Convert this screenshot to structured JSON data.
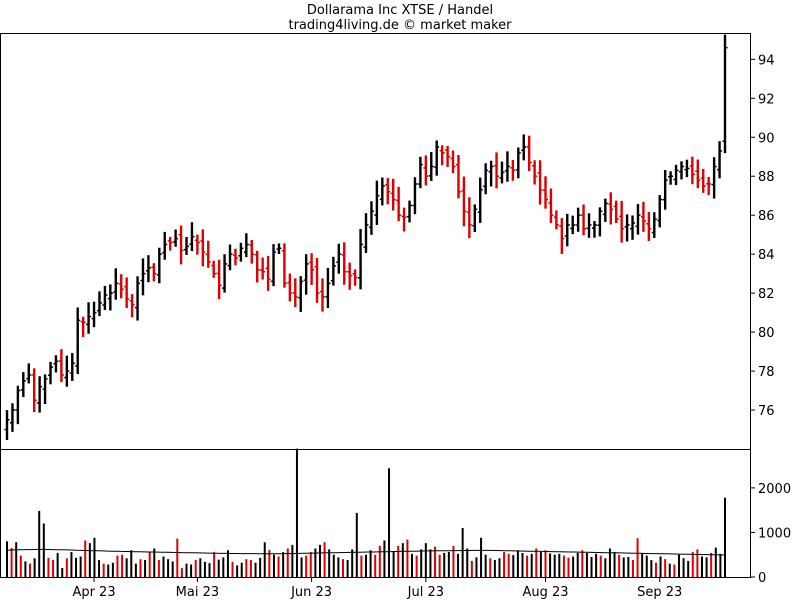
{
  "title": "Dollarama Inc XTSE / Handel",
  "subtitle": "trading4living.de © market maker",
  "colors": {
    "up": "#000000",
    "down": "#dd0000",
    "axis": "#000000",
    "background": "#ffffff"
  },
  "chart_data": [
    {
      "type": "ohlc",
      "ylim": [
        74,
        95.3
      ],
      "yticks": [
        76,
        78,
        80,
        82,
        84,
        86,
        88,
        90,
        92,
        94
      ],
      "ytick_labels": [
        "76",
        "78",
        "80",
        "82",
        "84",
        "86",
        "88",
        "90",
        "92",
        "94"
      ],
      "xticks": [
        {
          "label": "Apr 23",
          "index": 16
        },
        {
          "label": "Mai 23",
          "index": 35
        },
        {
          "label": "Jun 23",
          "index": 56
        },
        {
          "label": "Jul 23",
          "index": 77
        },
        {
          "label": "Aug 23",
          "index": 99
        },
        {
          "label": "Sep 23",
          "index": 120
        }
      ],
      "grid": false,
      "close": [
        75.5,
        76.0,
        77.0,
        77.5,
        77.8,
        76.5,
        77.2,
        77.6,
        78.2,
        78.5,
        77.8,
        78.0,
        78.4,
        80.6,
        80.5,
        80.8,
        81.0,
        81.5,
        81.9,
        82.0,
        82.5,
        82.2,
        81.7,
        81.4,
        82.5,
        83.0,
        83.3,
        83.0,
        84.0,
        84.5,
        84.6,
        84.8,
        84.2,
        84.4,
        84.9,
        84.6,
        84.1,
        83.6,
        83.0,
        82.4,
        83.5,
        84.0,
        83.8,
        84.3,
        84.5,
        84.0,
        83.2,
        83.1,
        82.7,
        84.1,
        84.3,
        82.5,
        82.0,
        81.8,
        82.6,
        83.5,
        83.2,
        82.0,
        81.8,
        82.5,
        83.4,
        84.0,
        83.1,
        82.9,
        82.8,
        84.5,
        85.5,
        86.2,
        87.0,
        87.5,
        87.2,
        86.8,
        86.0,
        85.9,
        86.5,
        87.6,
        88.6,
        88.0,
        88.5,
        89.5,
        89.2,
        89.0,
        88.5,
        87.2,
        86.2,
        85.5,
        86.3,
        87.3,
        88.3,
        88.5,
        88.0,
        88.2,
        88.5,
        88.3,
        89.2,
        89.5,
        88.7,
        88.0,
        87.3,
        86.8,
        86.0,
        85.5,
        84.8,
        85.5,
        85.5,
        86.0,
        85.3,
        85.5,
        85.5,
        86.2,
        86.6,
        86.3,
        85.8,
        85.3,
        85.5,
        85.6,
        86.0,
        85.7,
        85.3,
        85.8,
        86.8,
        87.8,
        88.0,
        88.3,
        88.5,
        88.4,
        88.1,
        87.8,
        87.5,
        87.6,
        88.5,
        89.3,
        94.6
      ]
    },
    {
      "type": "bar",
      "ylim": [
        0,
        2850
      ],
      "yticks": [
        0,
        1000,
        2000
      ],
      "ytick_labels": [
        "0",
        "1000",
        "2000"
      ],
      "values": [
        800,
        650,
        780,
        480,
        350,
        300,
        420,
        1480,
        1200,
        430,
        380,
        540,
        200,
        420,
        560,
        430,
        460,
        820,
        760,
        880,
        380,
        300,
        280,
        320,
        480,
        500,
        420,
        600,
        300,
        400,
        380,
        560,
        640,
        380,
        460,
        400,
        350,
        860,
        200,
        300,
        280,
        380,
        420,
        340,
        310,
        560,
        390,
        440,
        600,
        340,
        260,
        320,
        400,
        380,
        320,
        430,
        780,
        610,
        500,
        460,
        560,
        640,
        720,
        2880,
        440,
        480,
        560,
        640,
        720,
        780,
        620,
        500,
        440,
        400,
        380,
        620,
        1440,
        480,
        500,
        600,
        500,
        700,
        820,
        2440,
        580,
        700,
        760,
        840,
        520,
        480,
        620,
        760,
        620,
        680,
        500,
        540,
        560,
        700,
        520,
        1100,
        640,
        360,
        440,
        880,
        500,
        420,
        380,
        420,
        560,
        520,
        490,
        600,
        540,
        480,
        520,
        640,
        560,
        600,
        530,
        500,
        520,
        480,
        430,
        460,
        540,
        600,
        540,
        450,
        520,
        480,
        420,
        640,
        560,
        500,
        440,
        450,
        380,
        870,
        540,
        480,
        380,
        320,
        460,
        400,
        300,
        280,
        500,
        420,
        360,
        560,
        620,
        460,
        440,
        540,
        660,
        520,
        1780
      ],
      "average": [
        600,
        605,
        610,
        612,
        615,
        616,
        618,
        620,
        620,
        618,
        616,
        612,
        610,
        608,
        605,
        600,
        598,
        595,
        592,
        590,
        588,
        585,
        582,
        580,
        578,
        575,
        572,
        570,
        568,
        566,
        564,
        562,
        560,
        558,
        556,
        554,
        552,
        550,
        548,
        546,
        544,
        542,
        540,
        538,
        536,
        534,
        532,
        530,
        530,
        528,
        528,
        526,
        526,
        524,
        524,
        522,
        522,
        520,
        520,
        520,
        522,
        524,
        526,
        528,
        530,
        532,
        534,
        536,
        538,
        540,
        542,
        544,
        546,
        548,
        550,
        552,
        554,
        556,
        558,
        560,
        562,
        564,
        566,
        568,
        570,
        572,
        574,
        576,
        578,
        580,
        582,
        584,
        586,
        586,
        588,
        588,
        590,
        590,
        592,
        592,
        594,
        594,
        596,
        596,
        598,
        598,
        596,
        594,
        592,
        590,
        588,
        586,
        584,
        582,
        580,
        578,
        576,
        574,
        572,
        570,
        568,
        566,
        564,
        562,
        560,
        558,
        556,
        554,
        552,
        550,
        548,
        546,
        544,
        542,
        540,
        538,
        536,
        534,
        532,
        530,
        528,
        526,
        524,
        522,
        520,
        518,
        516,
        514,
        512,
        510,
        508,
        506,
        504,
        502,
        500,
        498,
        496,
        494
      ]
    }
  ]
}
